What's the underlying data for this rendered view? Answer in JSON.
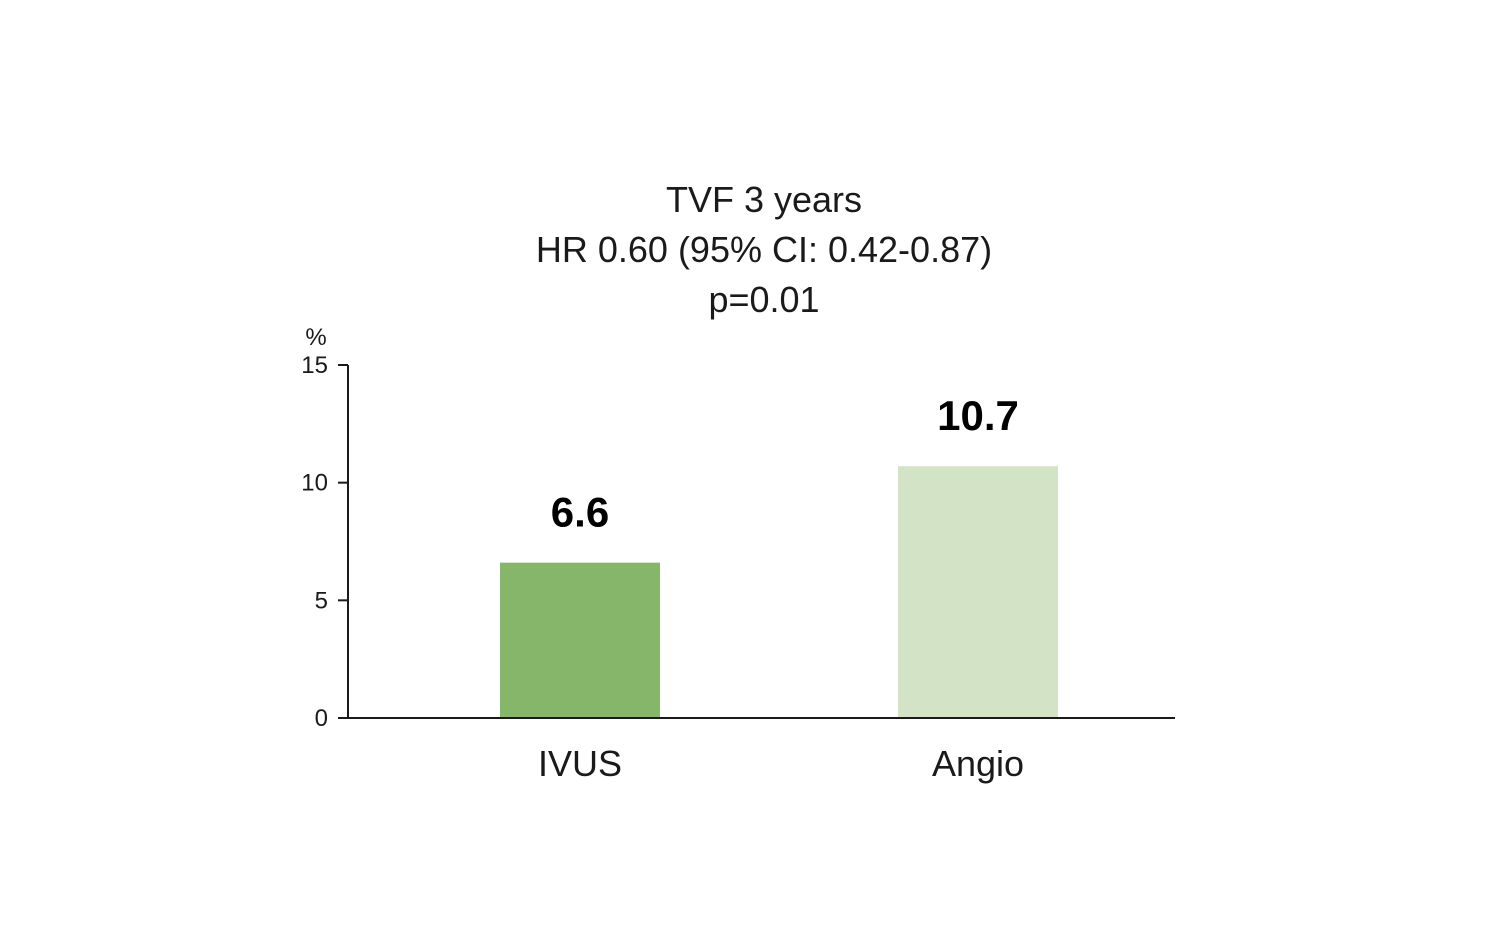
{
  "chart_data": {
    "type": "bar",
    "title_lines": [
      "TVF 3 years",
      "HR 0.60 (95% CI: 0.42-0.87)",
      "p=0.01"
    ],
    "ylabel": "%",
    "categories": [
      "IVUS",
      "Angio"
    ],
    "values": [
      6.6,
      10.7
    ],
    "value_labels": [
      "6.6",
      "10.7"
    ],
    "ylim": [
      0,
      15
    ],
    "yticks": [
      0,
      5,
      10,
      15
    ],
    "bar_colors": [
      "#86b66a",
      "#d3e3c6"
    ],
    "grid": false,
    "legend": "none"
  }
}
